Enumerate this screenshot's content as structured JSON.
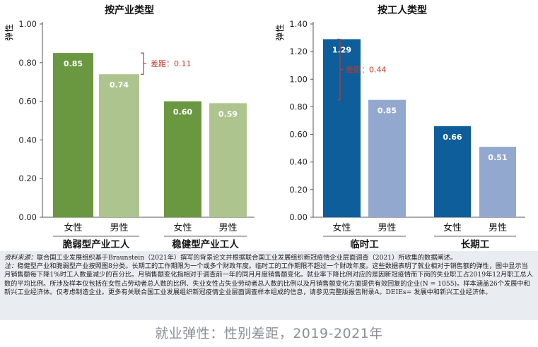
{
  "chart_data": [
    {
      "type": "bar",
      "title": "按产业类型",
      "ylabel": "弹性",
      "ylim": [
        0,
        1.0
      ],
      "yticks": [
        "0.00",
        "0.20",
        "0.40",
        "0.60",
        "0.80",
        "1.00"
      ],
      "groups": [
        {
          "name": "脆弱型产业工人",
          "bars": [
            {
              "label": "女性",
              "value": 0.85,
              "value_label": "0.85",
              "color": "#6a9840"
            },
            {
              "label": "男性",
              "value": 0.74,
              "value_label": "0.74",
              "color": "#adc48e"
            }
          ]
        },
        {
          "name": "稳健型产业工人",
          "bars": [
            {
              "label": "女性",
              "value": 0.6,
              "value_label": "0.60",
              "color": "#6a9840"
            },
            {
              "label": "男性",
              "value": 0.59,
              "value_label": "0.59",
              "color": "#adc48e"
            }
          ]
        }
      ],
      "annotation": {
        "text": "差距：0.11",
        "color": "#c0392b"
      }
    },
    {
      "type": "bar",
      "title": "按工人类型",
      "ylabel": "弹性",
      "ylim": [
        0,
        1.4
      ],
      "yticks": [
        "0.00",
        "0.20",
        "0.40",
        "0.60",
        "0.80",
        "1.00",
        "1.20",
        "1.40"
      ],
      "groups": [
        {
          "name": "临时工",
          "bars": [
            {
              "label": "女性",
              "value": 1.29,
              "value_label": "1.29",
              "color": "#0e5e9c"
            },
            {
              "label": "男性",
              "value": 0.85,
              "value_label": "0.85",
              "color": "#93a8cf"
            }
          ]
        },
        {
          "name": "长期工",
          "bars": [
            {
              "label": "女性",
              "value": 0.66,
              "value_label": "0.66",
              "color": "#0e5e9c"
            },
            {
              "label": "男性",
              "value": 0.51,
              "value_label": "0.51",
              "color": "#93a8cf"
            }
          ]
        }
      ],
      "annotation": {
        "text": "差距：0.44",
        "color": "#c0392b"
      }
    }
  ],
  "notes": {
    "source_label": "资料来源：",
    "source_text": "联合国工业发展组织基于Braunstein（2021年）撰写的背景论文并根据联合国工业发展组织新冠疫情企业层面调查（2021）所收集的数据阐述。",
    "note_label": "注：",
    "note_text": "稳健型产业和脆弱型产业按照图8分类。长期工的工作期限为一个或多个财政年度。临时工的工作期限不超过一个财政年度。这些数据表明了就业相对于销售额的弹性，图中显示当月销售额每下降1%时工人数量减少的百分比。月销售额变化指相对于调查前一年的同月月度销售额变化。就业率下降比例对应的是因新冠疫情而下岗的失业职工占2019年12月职工总人数的平均比例。所涉及样本仅包括在女性占劳动者总人数的比例、失业女性占失业劳动者总人数的比例以及月销售额变化方面提供有效回复的企业(N = 1055)。样本涵盖26个发展中和新兴工业经济体。仅考虑制造企业。更多有关联合国工业发展组织新冠疫情企业层面调查样本组成的信息，请参见完整版报告附录A。DEIEs= 发展中和新兴工业经济体。"
  },
  "caption": "就业弹性：性别差距，2019-2021年"
}
